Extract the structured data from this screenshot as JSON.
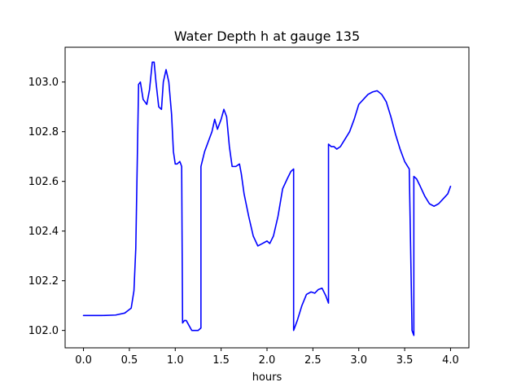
{
  "chart_data": {
    "type": "line",
    "title": "Water Depth h at gauge 135",
    "xlabel": "hours",
    "ylabel": "",
    "xlim": [
      -0.2,
      4.2
    ],
    "ylim": [
      101.93,
      103.14
    ],
    "xticks": [
      0.0,
      0.5,
      1.0,
      1.5,
      2.0,
      2.5,
      3.0,
      3.5,
      4.0
    ],
    "xtick_labels": [
      "0.0",
      "0.5",
      "1.0",
      "1.5",
      "2.0",
      "2.5",
      "3.0",
      "3.5",
      "4.0"
    ],
    "yticks": [
      102.0,
      102.2,
      102.4,
      102.6,
      102.8,
      103.0
    ],
    "ytick_labels": [
      "102.0",
      "102.2",
      "102.4",
      "102.6",
      "102.8",
      "103.0"
    ],
    "grid": false,
    "legend": "none",
    "series": [
      {
        "color": "#0000ff",
        "x": [
          0.0,
          0.2,
          0.35,
          0.45,
          0.52,
          0.55,
          0.57,
          0.6,
          0.6,
          0.62,
          0.65,
          0.69,
          0.72,
          0.75,
          0.77,
          0.79,
          0.82,
          0.85,
          0.87,
          0.9,
          0.93,
          0.96,
          0.98,
          1.0,
          1.02,
          1.05,
          1.07,
          1.08,
          1.08,
          1.1,
          1.12,
          1.15,
          1.18,
          1.21,
          1.25,
          1.28,
          1.28,
          1.32,
          1.36,
          1.4,
          1.43,
          1.46,
          1.5,
          1.53,
          1.56,
          1.59,
          1.62,
          1.66,
          1.7,
          1.72,
          1.75,
          1.8,
          1.85,
          1.9,
          1.95,
          2.0,
          2.03,
          2.07,
          2.12,
          2.17,
          2.22,
          2.26,
          2.29,
          2.29,
          2.33,
          2.38,
          2.43,
          2.48,
          2.52,
          2.56,
          2.6,
          2.64,
          2.67,
          2.67,
          2.7,
          2.73,
          2.76,
          2.8,
          2.85,
          2.9,
          2.95,
          3.0,
          3.05,
          3.1,
          3.15,
          3.2,
          3.25,
          3.3,
          3.35,
          3.4,
          3.45,
          3.5,
          3.55,
          3.58,
          3.58,
          3.6,
          3.6,
          3.63,
          3.67,
          3.72,
          3.77,
          3.82,
          3.87,
          3.92,
          3.97,
          4.0
        ],
        "y": [
          102.06,
          102.06,
          102.062,
          102.07,
          102.09,
          102.16,
          102.33,
          102.98,
          102.99,
          103.0,
          102.93,
          102.91,
          102.97,
          103.08,
          103.08,
          103.0,
          102.9,
          102.89,
          103.0,
          103.05,
          103.0,
          102.87,
          102.72,
          102.67,
          102.67,
          102.68,
          102.66,
          102.03,
          102.03,
          102.04,
          102.04,
          102.02,
          102.0,
          102.0,
          102.0,
          102.01,
          102.66,
          102.72,
          102.76,
          102.8,
          102.85,
          102.81,
          102.85,
          102.89,
          102.86,
          102.74,
          102.66,
          102.66,
          102.67,
          102.63,
          102.55,
          102.46,
          102.38,
          102.34,
          102.35,
          102.36,
          102.35,
          102.38,
          102.46,
          102.57,
          102.61,
          102.64,
          102.65,
          102.0,
          102.04,
          102.1,
          102.145,
          102.155,
          102.15,
          102.165,
          102.17,
          102.14,
          102.11,
          102.75,
          102.74,
          102.74,
          102.73,
          102.74,
          102.77,
          102.8,
          102.85,
          102.91,
          102.93,
          102.95,
          102.96,
          102.965,
          102.95,
          102.92,
          102.86,
          102.79,
          102.73,
          102.68,
          102.65,
          102.01,
          102.0,
          101.98,
          102.62,
          102.61,
          102.58,
          102.54,
          102.51,
          102.5,
          102.51,
          102.53,
          102.55,
          102.58
        ]
      }
    ]
  }
}
